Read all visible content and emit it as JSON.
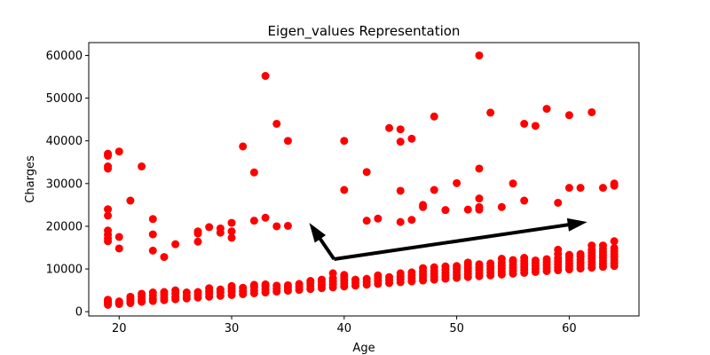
{
  "chart_data": {
    "type": "scatter",
    "title": "Eigen_values Representation",
    "xlabel": "Age",
    "ylabel": "Charges",
    "xlim": [
      17.3,
      66.2
    ],
    "ylim": [
      -1000,
      63000
    ],
    "xticks": [
      20,
      30,
      40,
      50,
      60
    ],
    "yticks": [
      0,
      10000,
      20000,
      30000,
      40000,
      50000,
      60000
    ],
    "grid": false,
    "legend": "none",
    "point_color": "#ff0000",
    "arrow_color": "#000000",
    "arrows": [
      {
        "from": [
          39.1,
          12300
        ],
        "to": [
          61.6,
          21000
        ]
      },
      {
        "from": [
          39.1,
          12300
        ],
        "to": [
          36.9,
          20800
        ]
      }
    ],
    "points": [
      [
        19,
        1600
      ],
      [
        19,
        1900
      ],
      [
        19,
        2200
      ],
      [
        19,
        2500
      ],
      [
        19,
        2800
      ],
      [
        19,
        16500
      ],
      [
        19,
        17200
      ],
      [
        19,
        18000
      ],
      [
        19,
        19000
      ],
      [
        19,
        22500
      ],
      [
        19,
        24000
      ],
      [
        19,
        33500
      ],
      [
        19,
        34000
      ],
      [
        19,
        36500
      ],
      [
        19,
        37000
      ],
      [
        20,
        1800
      ],
      [
        20,
        2100
      ],
      [
        20,
        2400
      ],
      [
        20,
        14800
      ],
      [
        20,
        17500
      ],
      [
        20,
        37500
      ],
      [
        21,
        2000
      ],
      [
        21,
        2500
      ],
      [
        21,
        3000
      ],
      [
        21,
        3500
      ],
      [
        21,
        26000
      ],
      [
        22,
        2300
      ],
      [
        22,
        2800
      ],
      [
        22,
        3500
      ],
      [
        22,
        4200
      ],
      [
        22,
        34000
      ],
      [
        23,
        2500
      ],
      [
        23,
        3000
      ],
      [
        23,
        3800
      ],
      [
        23,
        4500
      ],
      [
        23,
        14300
      ],
      [
        23,
        18100
      ],
      [
        23,
        21700
      ],
      [
        24,
        2700
      ],
      [
        24,
        3300
      ],
      [
        24,
        4000
      ],
      [
        24,
        4600
      ],
      [
        24,
        12800
      ],
      [
        25,
        2900
      ],
      [
        25,
        3500
      ],
      [
        25,
        4300
      ],
      [
        25,
        5000
      ],
      [
        25,
        15800
      ],
      [
        26,
        3100
      ],
      [
        26,
        3700
      ],
      [
        26,
        4500
      ],
      [
        27,
        3300
      ],
      [
        27,
        4000
      ],
      [
        27,
        4600
      ],
      [
        27,
        16400
      ],
      [
        27,
        18300
      ],
      [
        27,
        18800
      ],
      [
        28,
        3500
      ],
      [
        28,
        4200
      ],
      [
        28,
        4800
      ],
      [
        28,
        5500
      ],
      [
        28,
        19800
      ],
      [
        29,
        3700
      ],
      [
        29,
        4500
      ],
      [
        29,
        5200
      ],
      [
        29,
        18500
      ],
      [
        29,
        19500
      ],
      [
        30,
        3900
      ],
      [
        30,
        4700
      ],
      [
        30,
        5400
      ],
      [
        30,
        6000
      ],
      [
        30,
        17300
      ],
      [
        30,
        18800
      ],
      [
        30,
        20800
      ],
      [
        31,
        4100
      ],
      [
        31,
        4800
      ],
      [
        31,
        5600
      ],
      [
        31,
        38700
      ],
      [
        32,
        4300
      ],
      [
        32,
        5000
      ],
      [
        32,
        5800
      ],
      [
        32,
        6300
      ],
      [
        32,
        21300
      ],
      [
        32,
        32600
      ],
      [
        33,
        4500
      ],
      [
        33,
        5200
      ],
      [
        33,
        5900
      ],
      [
        33,
        6400
      ],
      [
        33,
        22000
      ],
      [
        33,
        55200
      ],
      [
        34,
        4700
      ],
      [
        34,
        5400
      ],
      [
        34,
        6100
      ],
      [
        34,
        20000
      ],
      [
        34,
        44000
      ],
      [
        35,
        4900
      ],
      [
        35,
        5600
      ],
      [
        35,
        6200
      ],
      [
        35,
        20100
      ],
      [
        35,
        40000
      ],
      [
        36,
        5100
      ],
      [
        36,
        5800
      ],
      [
        36,
        6500
      ],
      [
        37,
        5300
      ],
      [
        37,
        6000
      ],
      [
        37,
        6700
      ],
      [
        37,
        7200
      ],
      [
        38,
        5500
      ],
      [
        38,
        6200
      ],
      [
        38,
        6900
      ],
      [
        38,
        7500
      ],
      [
        39,
        5700
      ],
      [
        39,
        6400
      ],
      [
        39,
        7100
      ],
      [
        39,
        7800
      ],
      [
        39,
        9000
      ],
      [
        40,
        5900
      ],
      [
        40,
        6600
      ],
      [
        40,
        7300
      ],
      [
        40,
        8000
      ],
      [
        40,
        8600
      ],
      [
        40,
        28500
      ],
      [
        40,
        40000
      ],
      [
        41,
        6100
      ],
      [
        41,
        6800
      ],
      [
        41,
        7500
      ],
      [
        42,
        6300
      ],
      [
        42,
        7000
      ],
      [
        42,
        7700
      ],
      [
        42,
        21300
      ],
      [
        42,
        32700
      ],
      [
        43,
        6500
      ],
      [
        43,
        7200
      ],
      [
        43,
        7900
      ],
      [
        43,
        8500
      ],
      [
        43,
        21800
      ],
      [
        44,
        6700
      ],
      [
        44,
        7400
      ],
      [
        44,
        8100
      ],
      [
        44,
        43000
      ],
      [
        45,
        6900
      ],
      [
        45,
        7600
      ],
      [
        45,
        8300
      ],
      [
        45,
        9000
      ],
      [
        45,
        21000
      ],
      [
        45,
        28300
      ],
      [
        45,
        39800
      ],
      [
        45,
        42700
      ],
      [
        46,
        7100
      ],
      [
        46,
        7800
      ],
      [
        46,
        8500
      ],
      [
        46,
        9200
      ],
      [
        46,
        21500
      ],
      [
        46,
        40500
      ],
      [
        47,
        7300
      ],
      [
        47,
        8000
      ],
      [
        47,
        8700
      ],
      [
        47,
        9400
      ],
      [
        47,
        10200
      ],
      [
        47,
        24500
      ],
      [
        47,
        25000
      ],
      [
        48,
        7500
      ],
      [
        48,
        8200
      ],
      [
        48,
        8900
      ],
      [
        48,
        9600
      ],
      [
        48,
        10400
      ],
      [
        48,
        28500
      ],
      [
        48,
        45700
      ],
      [
        49,
        7700
      ],
      [
        49,
        8400
      ],
      [
        49,
        9100
      ],
      [
        49,
        9800
      ],
      [
        49,
        10600
      ],
      [
        49,
        23800
      ],
      [
        50,
        7900
      ],
      [
        50,
        8600
      ],
      [
        50,
        9300
      ],
      [
        50,
        10000
      ],
      [
        50,
        10700
      ],
      [
        50,
        30100
      ],
      [
        51,
        8100
      ],
      [
        51,
        8800
      ],
      [
        51,
        9500
      ],
      [
        51,
        10200
      ],
      [
        51,
        10900
      ],
      [
        51,
        11500
      ],
      [
        51,
        23900
      ],
      [
        52,
        8300
      ],
      [
        52,
        9000
      ],
      [
        52,
        9700
      ],
      [
        52,
        10400
      ],
      [
        52,
        11100
      ],
      [
        52,
        23900
      ],
      [
        52,
        24500
      ],
      [
        52,
        26500
      ],
      [
        52,
        33500
      ],
      [
        52,
        60000
      ],
      [
        53,
        8500
      ],
      [
        53,
        9200
      ],
      [
        53,
        9900
      ],
      [
        53,
        10600
      ],
      [
        53,
        11300
      ],
      [
        53,
        46600
      ],
      [
        54,
        8700
      ],
      [
        54,
        9400
      ],
      [
        54,
        10100
      ],
      [
        54,
        10800
      ],
      [
        54,
        11500
      ],
      [
        54,
        12400
      ],
      [
        54,
        24500
      ],
      [
        55,
        8900
      ],
      [
        55,
        9600
      ],
      [
        55,
        10300
      ],
      [
        55,
        11000
      ],
      [
        55,
        11700
      ],
      [
        55,
        12100
      ],
      [
        55,
        30000
      ],
      [
        56,
        9100
      ],
      [
        56,
        9800
      ],
      [
        56,
        10500
      ],
      [
        56,
        11200
      ],
      [
        56,
        11900
      ],
      [
        56,
        12600
      ],
      [
        56,
        26000
      ],
      [
        56,
        44000
      ],
      [
        57,
        9300
      ],
      [
        57,
        10000
      ],
      [
        57,
        10700
      ],
      [
        57,
        11400
      ],
      [
        57,
        12000
      ],
      [
        57,
        43500
      ],
      [
        58,
        9500
      ],
      [
        58,
        10200
      ],
      [
        58,
        10900
      ],
      [
        58,
        11600
      ],
      [
        58,
        12300
      ],
      [
        58,
        47500
      ],
      [
        59,
        9700
      ],
      [
        59,
        10400
      ],
      [
        59,
        11100
      ],
      [
        59,
        11800
      ],
      [
        59,
        12500
      ],
      [
        59,
        13500
      ],
      [
        59,
        14500
      ],
      [
        59,
        25500
      ],
      [
        60,
        9900
      ],
      [
        60,
        10600
      ],
      [
        60,
        11300
      ],
      [
        60,
        12000
      ],
      [
        60,
        12700
      ],
      [
        60,
        13300
      ],
      [
        60,
        29000
      ],
      [
        60,
        46000
      ],
      [
        61,
        10100
      ],
      [
        61,
        10800
      ],
      [
        61,
        11500
      ],
      [
        61,
        12200
      ],
      [
        61,
        12900
      ],
      [
        61,
        13500
      ],
      [
        61,
        29000
      ],
      [
        62,
        10300
      ],
      [
        62,
        11000
      ],
      [
        62,
        11700
      ],
      [
        62,
        12400
      ],
      [
        62,
        13100
      ],
      [
        62,
        13800
      ],
      [
        62,
        14500
      ],
      [
        62,
        15500
      ],
      [
        62,
        46700
      ],
      [
        63,
        10500
      ],
      [
        63,
        11200
      ],
      [
        63,
        11900
      ],
      [
        63,
        12600
      ],
      [
        63,
        13300
      ],
      [
        63,
        14000
      ],
      [
        63,
        14700
      ],
      [
        63,
        15500
      ],
      [
        63,
        29000
      ],
      [
        64,
        10700
      ],
      [
        64,
        11400
      ],
      [
        64,
        12100
      ],
      [
        64,
        12800
      ],
      [
        64,
        13500
      ],
      [
        64,
        14200
      ],
      [
        64,
        14900
      ],
      [
        64,
        16500
      ],
      [
        64,
        29500
      ],
      [
        64,
        30000
      ]
    ]
  }
}
